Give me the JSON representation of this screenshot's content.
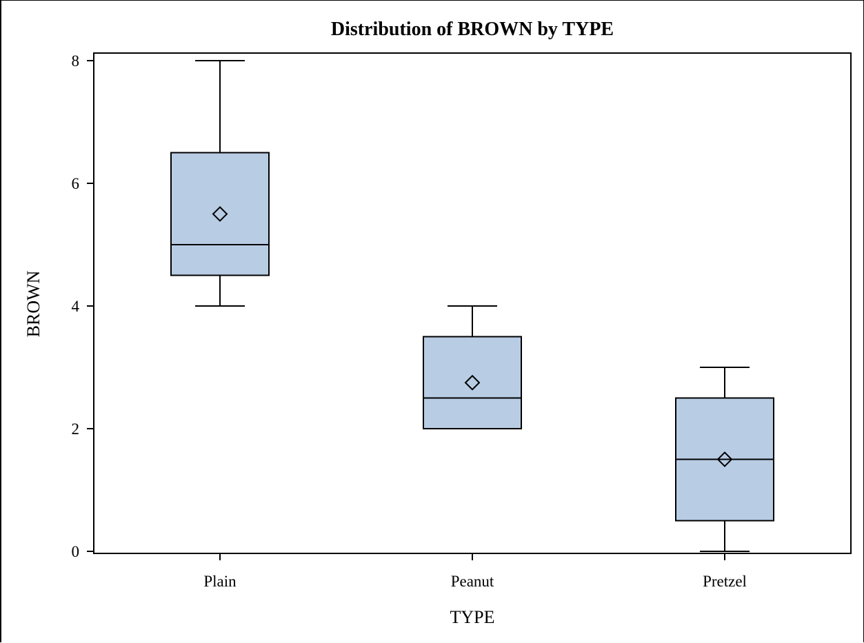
{
  "chart_data": {
    "type": "box",
    "title": "Distribution of BROWN by TYPE",
    "xlabel": "TYPE",
    "ylabel": "BROWN",
    "ylim": [
      0,
      8
    ],
    "yticks": [
      0,
      2,
      4,
      6,
      8
    ],
    "grid": false,
    "box_fill": "#b8cce4",
    "line_color": "#000000",
    "categories": [
      "Plain",
      "Peanut",
      "Pretzel"
    ],
    "boxes": [
      {
        "category": "Plain",
        "min": 4,
        "q1": 4.5,
        "median": 5,
        "q3": 6.5,
        "max": 8,
        "mean": 5.5
      },
      {
        "category": "Peanut",
        "min": 2,
        "q1": 2,
        "median": 2.5,
        "q3": 3.5,
        "max": 4,
        "mean": 2.75
      },
      {
        "category": "Pretzel",
        "min": 0,
        "q1": 0.5,
        "median": 1.5,
        "q3": 2.5,
        "max": 3,
        "mean": 1.5
      }
    ]
  }
}
